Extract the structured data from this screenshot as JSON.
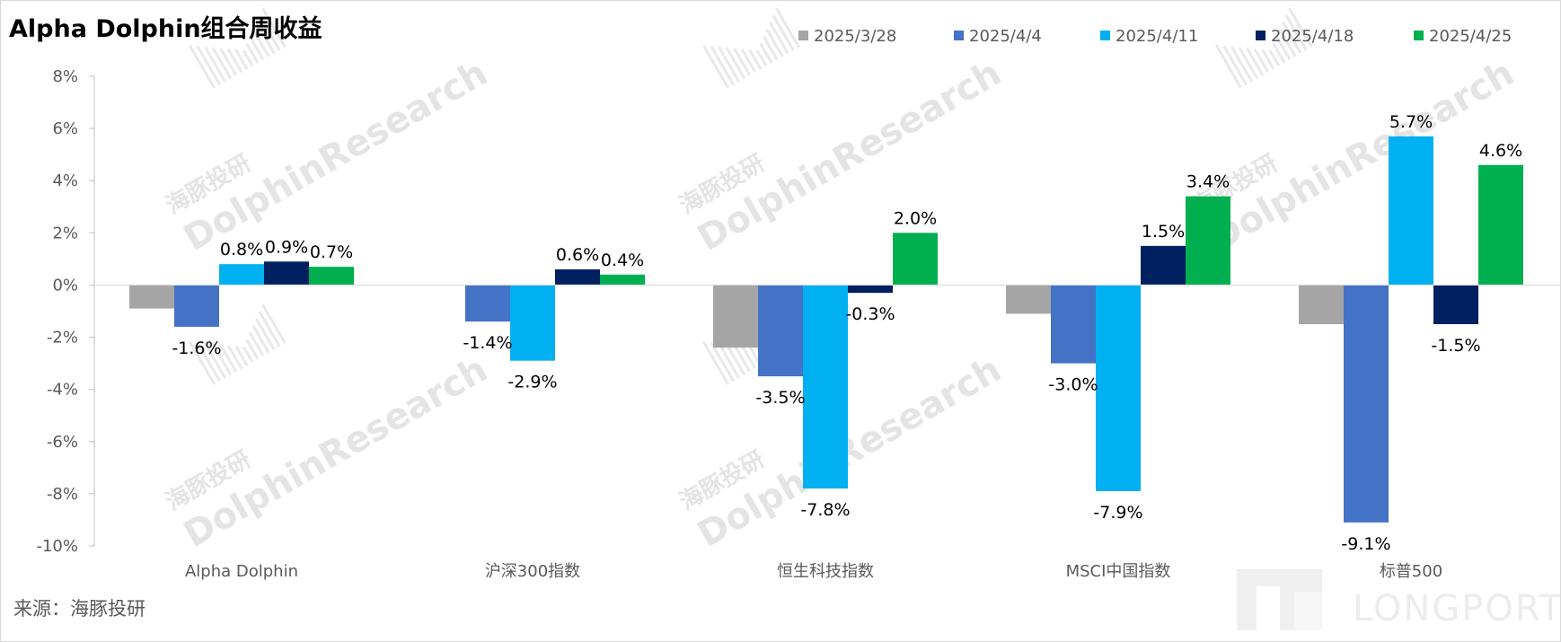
{
  "chart_data": {
    "type": "bar",
    "title": "Alpha Dolphin组合周收益",
    "categories": [
      "Alpha Dolphin",
      "沪深300指数",
      "恒生科技指数",
      "MSCI中国指数",
      "标普500"
    ],
    "series": [
      {
        "name": "2025/3/28",
        "color": "#a5a5a5",
        "values": [
          -0.9,
          null,
          -2.4,
          -1.1,
          -1.5
        ],
        "labels": [
          "",
          "",
          "",
          "",
          ""
        ]
      },
      {
        "name": "2025/4/4",
        "color": "#4472c4",
        "values": [
          -1.6,
          -1.4,
          -3.5,
          -3.0,
          -9.1
        ],
        "labels": [
          "-1.6%",
          "-1.4%",
          "-3.5%",
          "-3.0%",
          "-9.1%"
        ]
      },
      {
        "name": "2025/4/11",
        "color": "#00b0f0",
        "values": [
          0.8,
          -2.9,
          -7.8,
          -7.9,
          5.7
        ],
        "labels": [
          "0.8%",
          "-2.9%",
          "-7.8%",
          "-7.9%",
          "5.7%"
        ]
      },
      {
        "name": "2025/4/18",
        "color": "#002060",
        "values": [
          0.9,
          0.6,
          -0.3,
          1.5,
          -1.5
        ],
        "labels": [
          "0.9%",
          "0.6%",
          "-0.3%",
          "1.5%",
          "-1.5%"
        ]
      },
      {
        "name": "2025/4/25",
        "color": "#00b050",
        "values": [
          0.7,
          0.4,
          2.0,
          3.4,
          4.6
        ],
        "labels": [
          "0.7%",
          "0.4%",
          "2.0%",
          "3.4%",
          "4.6%"
        ]
      }
    ],
    "ylim": [
      -10,
      8
    ],
    "yticks": [
      8,
      6,
      4,
      2,
      0,
      -2,
      -4,
      -6,
      -8,
      -10
    ],
    "ytick_labels": [
      "8%",
      "6%",
      "4%",
      "2%",
      "0%",
      "-2%",
      "-4%",
      "-6%",
      "-8%",
      "-10%"
    ],
    "xlabel": "",
    "ylabel": "",
    "grid": false,
    "legend_position": "top-right"
  },
  "source": "来源：海豚投研",
  "watermark": {
    "line1": "海豚投研",
    "line2": "DolphinResearch"
  },
  "logo": {
    "text": "LONGPORT"
  }
}
